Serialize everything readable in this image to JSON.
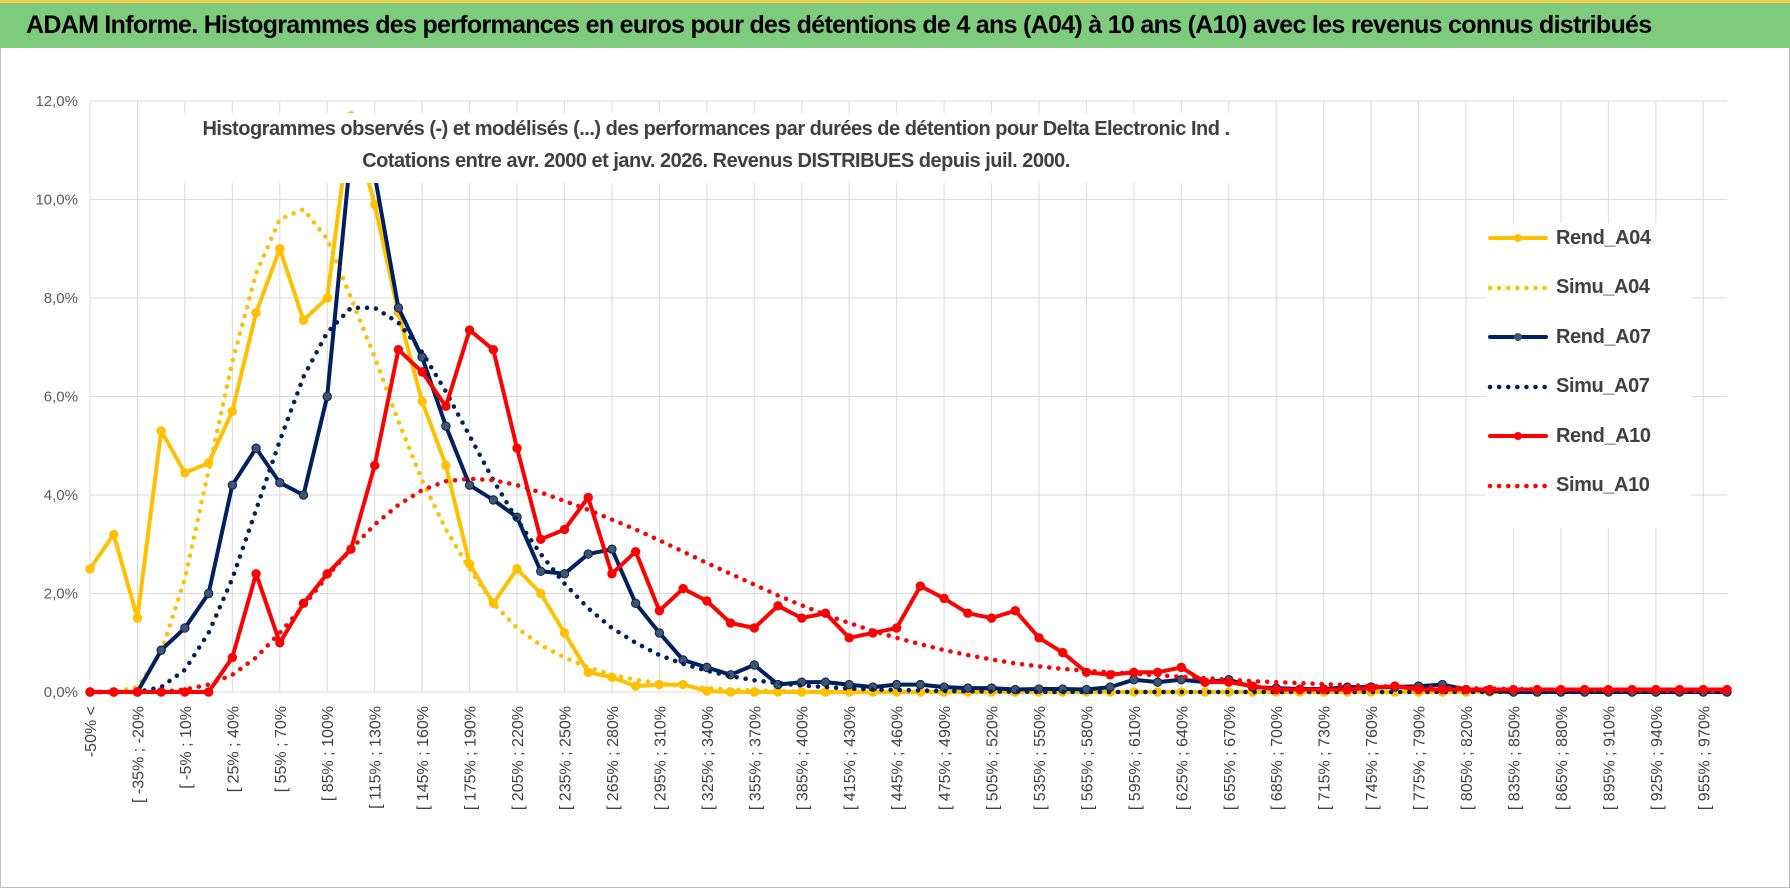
{
  "banner": {
    "title": "ADAM Informe. Histogrammes des performances en euros pour des détentions de 4 ans (A04) à 10 ans (A10) avec les revenus connus distribués"
  },
  "chart_title": {
    "line1": "Histogrammes observés (-) et modélisés (...) des performances par durées de détention pour Delta Electronic Ind .",
    "line2": "Cotations entre avr. 2000 et janv. 2026. Revenus DISTRIBUES depuis juil. 2000."
  },
  "legend": {
    "items": [
      {
        "label": "Rend_A04",
        "color": "#ffc000",
        "style": "solid"
      },
      {
        "label": "Simu_A04",
        "color": "#ffc000",
        "style": "dotted"
      },
      {
        "label": "Rend_A07",
        "color": "#002060",
        "style": "solid"
      },
      {
        "label": "Simu_A07",
        "color": "#002060",
        "style": "dotted"
      },
      {
        "label": "Rend_A10",
        "color": "#ff0000",
        "style": "solid"
      },
      {
        "label": "Simu_A10",
        "color": "#ff0000",
        "style": "dotted"
      }
    ]
  },
  "chart_data": {
    "type": "line",
    "title": "Histogrammes observés (-) et modélisés (...) des performances par durées de détention pour Delta Electronic Ind . Cotations entre avr. 2000 et janv. 2026. Revenus DISTRIBUES depuis juil. 2000.",
    "ylim": [
      0,
      12
    ],
    "y_ticks": [
      "0,0%",
      "2,0%",
      "4,0%",
      "6,0%",
      "8,0%",
      "10,0%",
      "12,0%"
    ],
    "grid": true,
    "legend_position": "right",
    "x_tick_labels": [
      "-50% <",
      "[ -35% ; -20%",
      "[ -5% ; 10%",
      "[ 25% ; 40%",
      "[ 55% ; 70%",
      "[ 85% ; 100%",
      "[ 115% ; 130%",
      "[ 145% ; 160%",
      "[ 175% ; 190%",
      "[ 205% ; 220%",
      "[ 235% ; 250%",
      "[ 265% ; 280%",
      "[ 295% ; 310%",
      "[ 325% ; 340%",
      "[ 355% ; 370%",
      "[ 385% ; 400%",
      "[ 415% ; 430%",
      "[ 445% ; 460%",
      "[ 475% ; 490%",
      "[ 505% ; 520%",
      "[ 535% ; 550%",
      "[ 565% ; 580%",
      "[ 595% ; 610%",
      "[ 625% ; 640%",
      "[ 655% ; 670%",
      "[ 685% ; 700%",
      "[ 715% ; 730%",
      "[ 745% ; 760%",
      "[ 775% ; 790%",
      "[ 805% ; 820%",
      "[ 835% ; 850%",
      "[ 865% ; 880%",
      "[ 895% ; 910%",
      "[ 925% ; 940%",
      "[ 955% ; 970%"
    ],
    "series": [
      {
        "name": "Rend_A04",
        "color": "#ffc000",
        "style": "solid",
        "markers": true,
        "values": [
          2.5,
          3.2,
          1.5,
          5.3,
          4.45,
          4.65,
          5.7,
          7.7,
          9.0,
          7.55,
          8.0,
          11.7,
          9.9,
          7.7,
          5.9,
          4.6,
          2.6,
          1.8,
          2.5,
          2.0,
          1.2,
          0.4,
          0.3,
          0.12,
          0.15,
          0.15,
          0.02,
          0,
          0,
          0,
          0,
          0,
          0,
          0,
          0,
          0,
          0,
          0,
          0,
          0,
          0,
          0,
          0,
          0,
          0,
          0,
          0,
          0,
          0,
          0,
          0,
          0,
          0,
          0,
          0,
          0,
          0,
          0,
          0,
          0,
          0,
          0,
          0,
          0,
          0,
          0,
          0,
          0,
          0,
          0
        ]
      },
      {
        "name": "Simu_A04",
        "color": "#ffc000",
        "style": "dotted",
        "markers": false,
        "values": [
          0,
          0,
          0.1,
          0.8,
          2.3,
          4.5,
          6.7,
          8.5,
          9.6,
          9.8,
          9.2,
          8.0,
          6.8,
          5.5,
          4.3,
          3.3,
          2.5,
          1.8,
          1.3,
          0.95,
          0.7,
          0.5,
          0.35,
          0.25,
          0.17,
          0.12,
          0.08,
          0.05,
          0.03,
          0.02,
          0.01,
          0,
          0,
          0,
          0,
          0,
          0,
          0,
          0,
          0,
          0,
          0,
          0,
          0,
          0,
          0,
          0,
          0,
          0,
          0,
          0,
          0,
          0,
          0,
          0,
          0,
          0,
          0,
          0,
          0,
          0,
          0,
          0,
          0,
          0,
          0,
          0,
          0,
          0,
          0
        ]
      },
      {
        "name": "Rend_A07",
        "color": "#002060",
        "style": "solid",
        "markers": true,
        "values": [
          0,
          0,
          0,
          0.85,
          1.3,
          2.0,
          4.2,
          4.95,
          4.25,
          4.0,
          6.0,
          11.0,
          10.5,
          7.8,
          6.8,
          5.4,
          4.2,
          3.9,
          3.55,
          2.45,
          2.4,
          2.8,
          2.9,
          1.8,
          1.2,
          0.65,
          0.5,
          0.35,
          0.55,
          0.15,
          0.2,
          0.2,
          0.15,
          0.1,
          0.15,
          0.15,
          0.1,
          0.08,
          0.08,
          0.05,
          0.06,
          0.06,
          0.05,
          0.1,
          0.25,
          0.2,
          0.25,
          0.2,
          0.25,
          0.1,
          0.08,
          0.06,
          0.06,
          0.1,
          0.1,
          0.1,
          0.12,
          0.15,
          0.05,
          0.02,
          0,
          0,
          0,
          0,
          0,
          0,
          0,
          0,
          0,
          0
        ]
      },
      {
        "name": "Simu_A07",
        "color": "#002060",
        "style": "dotted",
        "markers": false,
        "values": [
          0,
          0,
          0,
          0.1,
          0.45,
          1.2,
          2.3,
          3.7,
          5.1,
          6.4,
          7.3,
          7.8,
          7.8,
          7.5,
          6.9,
          6.1,
          5.2,
          4.3,
          3.5,
          2.8,
          2.2,
          1.7,
          1.3,
          1.0,
          0.75,
          0.57,
          0.43,
          0.32,
          0.24,
          0.18,
          0.13,
          0.1,
          0.07,
          0.05,
          0.04,
          0.03,
          0.02,
          0.015,
          0.01,
          0.01,
          0,
          0,
          0,
          0,
          0,
          0,
          0,
          0,
          0,
          0,
          0,
          0,
          0,
          0,
          0,
          0,
          0,
          0,
          0,
          0,
          0,
          0,
          0,
          0,
          0,
          0,
          0,
          0,
          0,
          0
        ]
      },
      {
        "name": "Rend_A10",
        "color": "#ff0000",
        "style": "solid",
        "markers": true,
        "values": [
          0,
          0,
          0,
          0,
          0,
          0,
          0.7,
          2.4,
          1.0,
          1.8,
          2.4,
          2.9,
          4.6,
          6.95,
          6.5,
          5.8,
          7.35,
          6.95,
          4.95,
          3.1,
          3.3,
          3.95,
          2.4,
          2.85,
          1.65,
          2.1,
          1.85,
          1.4,
          1.3,
          1.75,
          1.5,
          1.6,
          1.1,
          1.2,
          1.3,
          2.15,
          1.9,
          1.6,
          1.5,
          1.65,
          1.1,
          0.8,
          0.4,
          0.35,
          0.4,
          0.4,
          0.5,
          0.2,
          0.2,
          0.12,
          0.05,
          0.05,
          0.05,
          0.05,
          0.08,
          0.12,
          0.05,
          0.05,
          0.05,
          0.05,
          0.05,
          0.05,
          0.05,
          0.05,
          0.05,
          0.05,
          0.05,
          0.05,
          0.05,
          0.05
        ]
      },
      {
        "name": "Simu_A10",
        "color": "#ff0000",
        "style": "dotted",
        "markers": false,
        "values": [
          0,
          0,
          0,
          0,
          0.05,
          0.15,
          0.35,
          0.7,
          1.2,
          1.75,
          2.35,
          2.9,
          3.4,
          3.8,
          4.1,
          4.28,
          4.33,
          4.3,
          4.2,
          4.05,
          3.88,
          3.7,
          3.5,
          3.3,
          3.08,
          2.85,
          2.62,
          2.4,
          2.18,
          1.96,
          1.76,
          1.57,
          1.4,
          1.24,
          1.1,
          0.97,
          0.85,
          0.75,
          0.66,
          0.58,
          0.52,
          0.47,
          0.43,
          0.4,
          0.37,
          0.34,
          0.31,
          0.28,
          0.25,
          0.22,
          0.2,
          0.18,
          0.16,
          0.14,
          0.12,
          0.11,
          0.1,
          0.09,
          0.08,
          0.07,
          0.06,
          0.05,
          0.045,
          0.04,
          0.035,
          0.03,
          0.025,
          0.02,
          0.015,
          0.01
        ]
      }
    ]
  }
}
